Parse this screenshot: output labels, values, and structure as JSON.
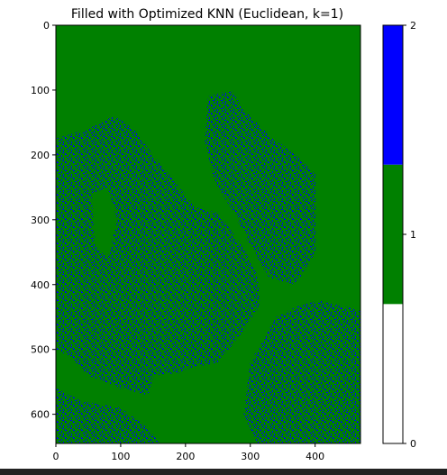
{
  "chart_data": {
    "type": "heatmap",
    "title": "Filled with Optimized KNN (Euclidean, k=1)",
    "xlabel": "",
    "ylabel": "",
    "xlim": [
      0,
      470
    ],
    "ylim": [
      645,
      0
    ],
    "x_ticks": [
      "0",
      "100",
      "200",
      "300",
      "400"
    ],
    "y_ticks": [
      "0",
      "100",
      "200",
      "300",
      "400",
      "500",
      "600"
    ],
    "grid": false,
    "colorbar": {
      "range": [
        0,
        2
      ],
      "ticks": [
        "0",
        "1",
        "2"
      ],
      "bands": [
        {
          "value": 0,
          "color": "#ffffff"
        },
        {
          "value": 1,
          "color": "#008000"
        },
        {
          "value": 2,
          "color": "#0000ff"
        }
      ]
    },
    "colors": {
      "class_0": "#ffffff",
      "class_1": "#008000",
      "class_2": "#0000ff"
    },
    "speckle_regions": [
      {
        "name": "left-peninsula",
        "points": [
          [
            0,
            175
          ],
          [
            50,
            160
          ],
          [
            90,
            140
          ],
          [
            120,
            160
          ],
          [
            150,
            200
          ],
          [
            190,
            250
          ],
          [
            215,
            280
          ],
          [
            250,
            290
          ],
          [
            280,
            330
          ],
          [
            310,
            380
          ],
          [
            315,
            430
          ],
          [
            290,
            470
          ],
          [
            250,
            520
          ],
          [
            200,
            530
          ],
          [
            180,
            560
          ],
          [
            140,
            570
          ],
          [
            100,
            560
          ],
          [
            50,
            540
          ],
          [
            20,
            510
          ],
          [
            0,
            500
          ]
        ]
      },
      {
        "name": "upper-right-band",
        "points": [
          [
            235,
            110
          ],
          [
            270,
            100
          ],
          [
            290,
            130
          ],
          [
            330,
            170
          ],
          [
            370,
            200
          ],
          [
            400,
            230
          ],
          [
            400,
            350
          ],
          [
            370,
            400
          ],
          [
            330,
            390
          ],
          [
            300,
            340
          ],
          [
            275,
            290
          ],
          [
            245,
            240
          ],
          [
            230,
            180
          ]
        ]
      },
      {
        "name": "lower-right-blob",
        "points": [
          [
            300,
            520
          ],
          [
            340,
            450
          ],
          [
            380,
            430
          ],
          [
            410,
            425
          ],
          [
            470,
            440
          ],
          [
            470,
            645
          ],
          [
            310,
            645
          ],
          [
            290,
            600
          ]
        ]
      },
      {
        "name": "bottom-left-blob",
        "points": [
          [
            0,
            560
          ],
          [
            40,
            580
          ],
          [
            100,
            590
          ],
          [
            140,
            620
          ],
          [
            160,
            645
          ],
          [
            0,
            645
          ]
        ]
      },
      {
        "name": "left-edge-strip",
        "points": [
          [
            0,
            300
          ],
          [
            30,
            320
          ],
          [
            35,
            400
          ],
          [
            15,
            470
          ],
          [
            0,
            480
          ]
        ]
      }
    ],
    "green_holes": [
      {
        "name": "hole-inner-left",
        "points": [
          [
            55,
            260
          ],
          [
            80,
            250
          ],
          [
            95,
            300
          ],
          [
            80,
            360
          ],
          [
            60,
            340
          ]
        ]
      },
      {
        "name": "hole-lower-center",
        "points": [
          [
            150,
            540
          ],
          [
            200,
            535
          ],
          [
            250,
            560
          ],
          [
            260,
            620
          ],
          [
            230,
            645
          ],
          [
            170,
            620
          ],
          [
            140,
            580
          ]
        ]
      }
    ]
  }
}
